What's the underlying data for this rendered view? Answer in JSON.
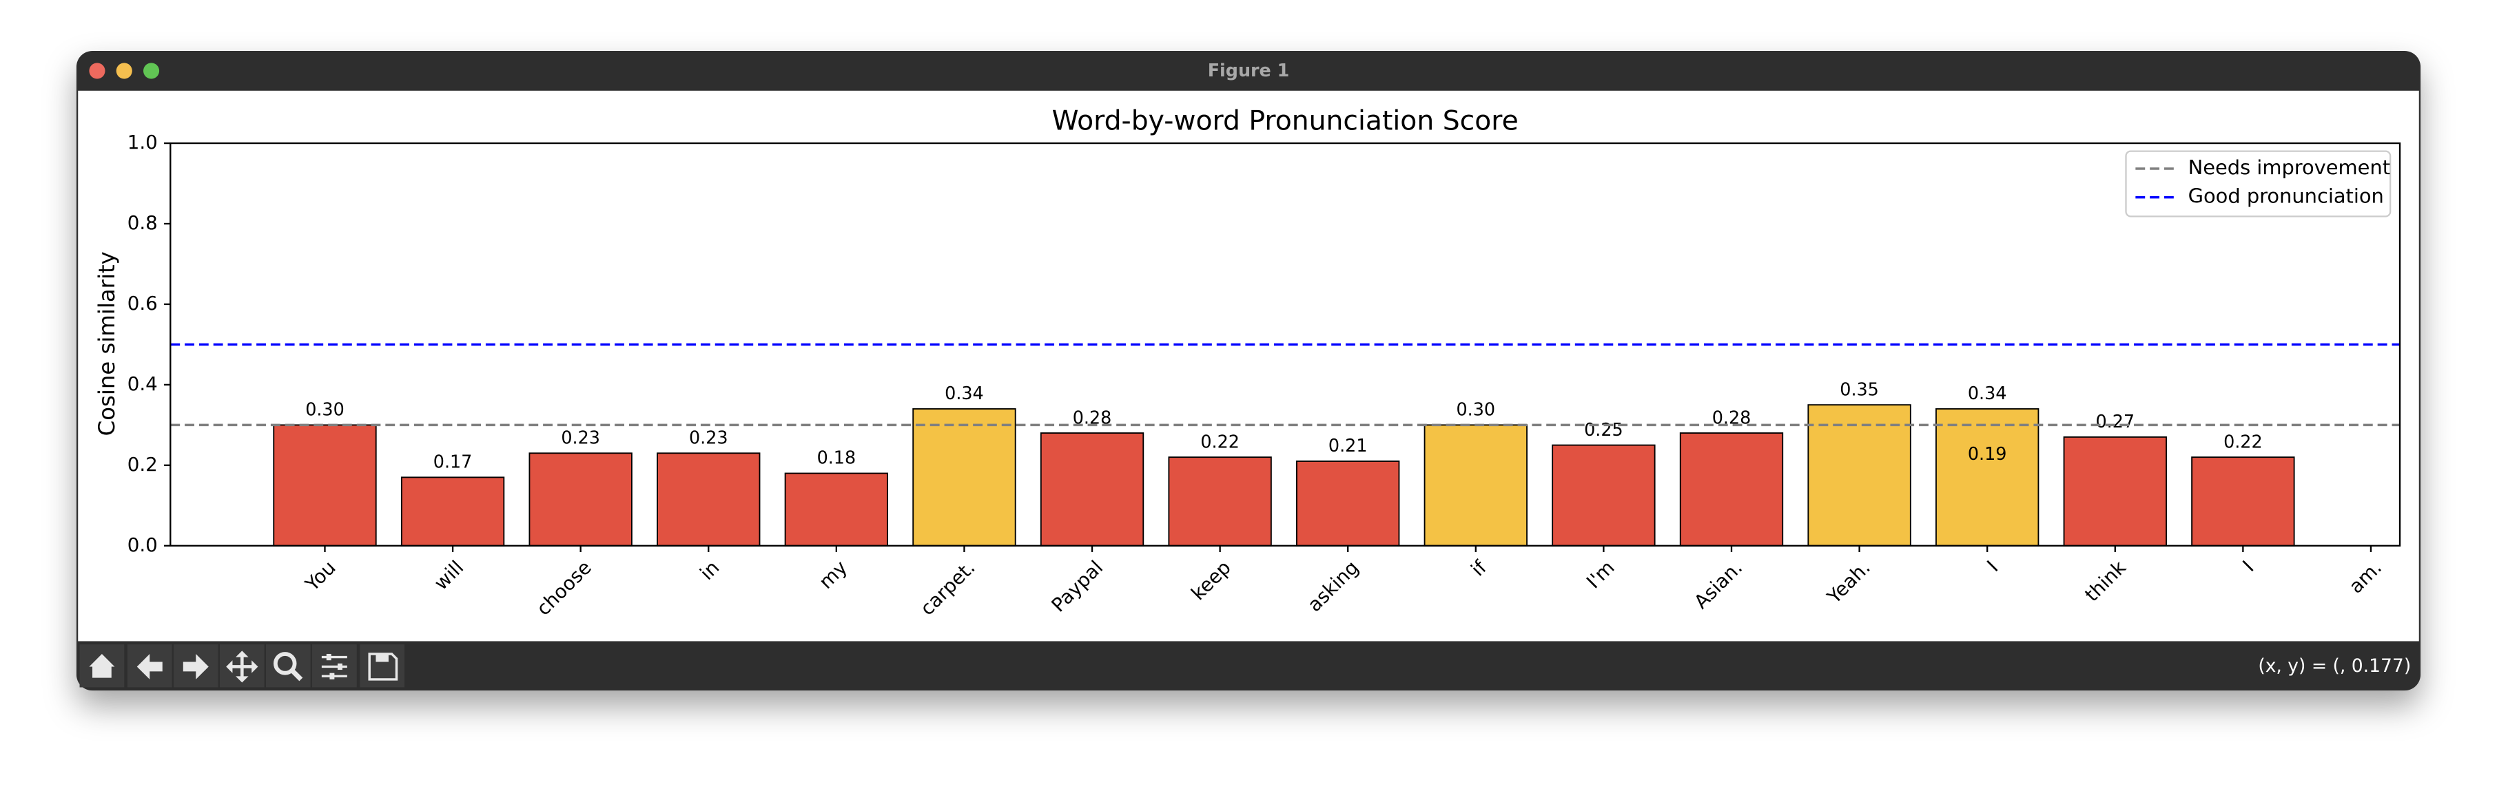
{
  "window_title": "Figure 1",
  "status": "(x, y) = (, 0.177)",
  "chart_data": {
    "type": "bar",
    "title": "Word-by-word Pronunciation Score",
    "y_label": "Cosine similarity",
    "categories": [
      "You",
      "will",
      "choose",
      "in",
      "my",
      "carpet.",
      "Paypal",
      "keep",
      "asking",
      "if",
      "I'm",
      "Asian.",
      "Yeah.",
      "I",
      "think",
      "I",
      "am."
    ],
    "values": [
      0.3,
      0.17,
      0.23,
      0.23,
      0.18,
      0.34,
      0.28,
      0.22,
      0.21,
      0.3,
      0.25,
      0.28,
      0.35,
      0.34,
      0.27,
      0.22,
      null
    ],
    "value_labels": [
      "0.30",
      "0.17",
      "0.23",
      "0.23",
      "0.18",
      "0.34",
      "0.28",
      "0.22",
      "0.21",
      "0.30",
      "0.25",
      "0.28",
      "0.35",
      "0.34",
      "0.27",
      "0.22",
      null
    ],
    "colors": [
      "#e15241",
      "#e15241",
      "#e15241",
      "#e15241",
      "#e15241",
      "#f4c245",
      "#e15241",
      "#e15241",
      "#e15241",
      "#f4c245",
      "#e15241",
      "#e15241",
      "#f4c245",
      "#f4c245",
      "#e15241",
      "#e15241",
      null
    ],
    "extra_values": [
      {
        "index": 13,
        "value": 0.19
      }
    ],
    "hlines": [
      {
        "name": "Needs improvement",
        "value": 0.3,
        "color": "#808080"
      },
      {
        "name": "Good pronunciation",
        "value": 0.5,
        "color": "#0000ff"
      }
    ],
    "ylim": [
      0,
      1
    ],
    "yticks": [
      {
        "value": 0,
        "label": "0.0"
      },
      0.2,
      0.4,
      0.6,
      0.8,
      {
        "value": 1,
        "label": "1.0"
      }
    ],
    "legend": "upper right"
  }
}
